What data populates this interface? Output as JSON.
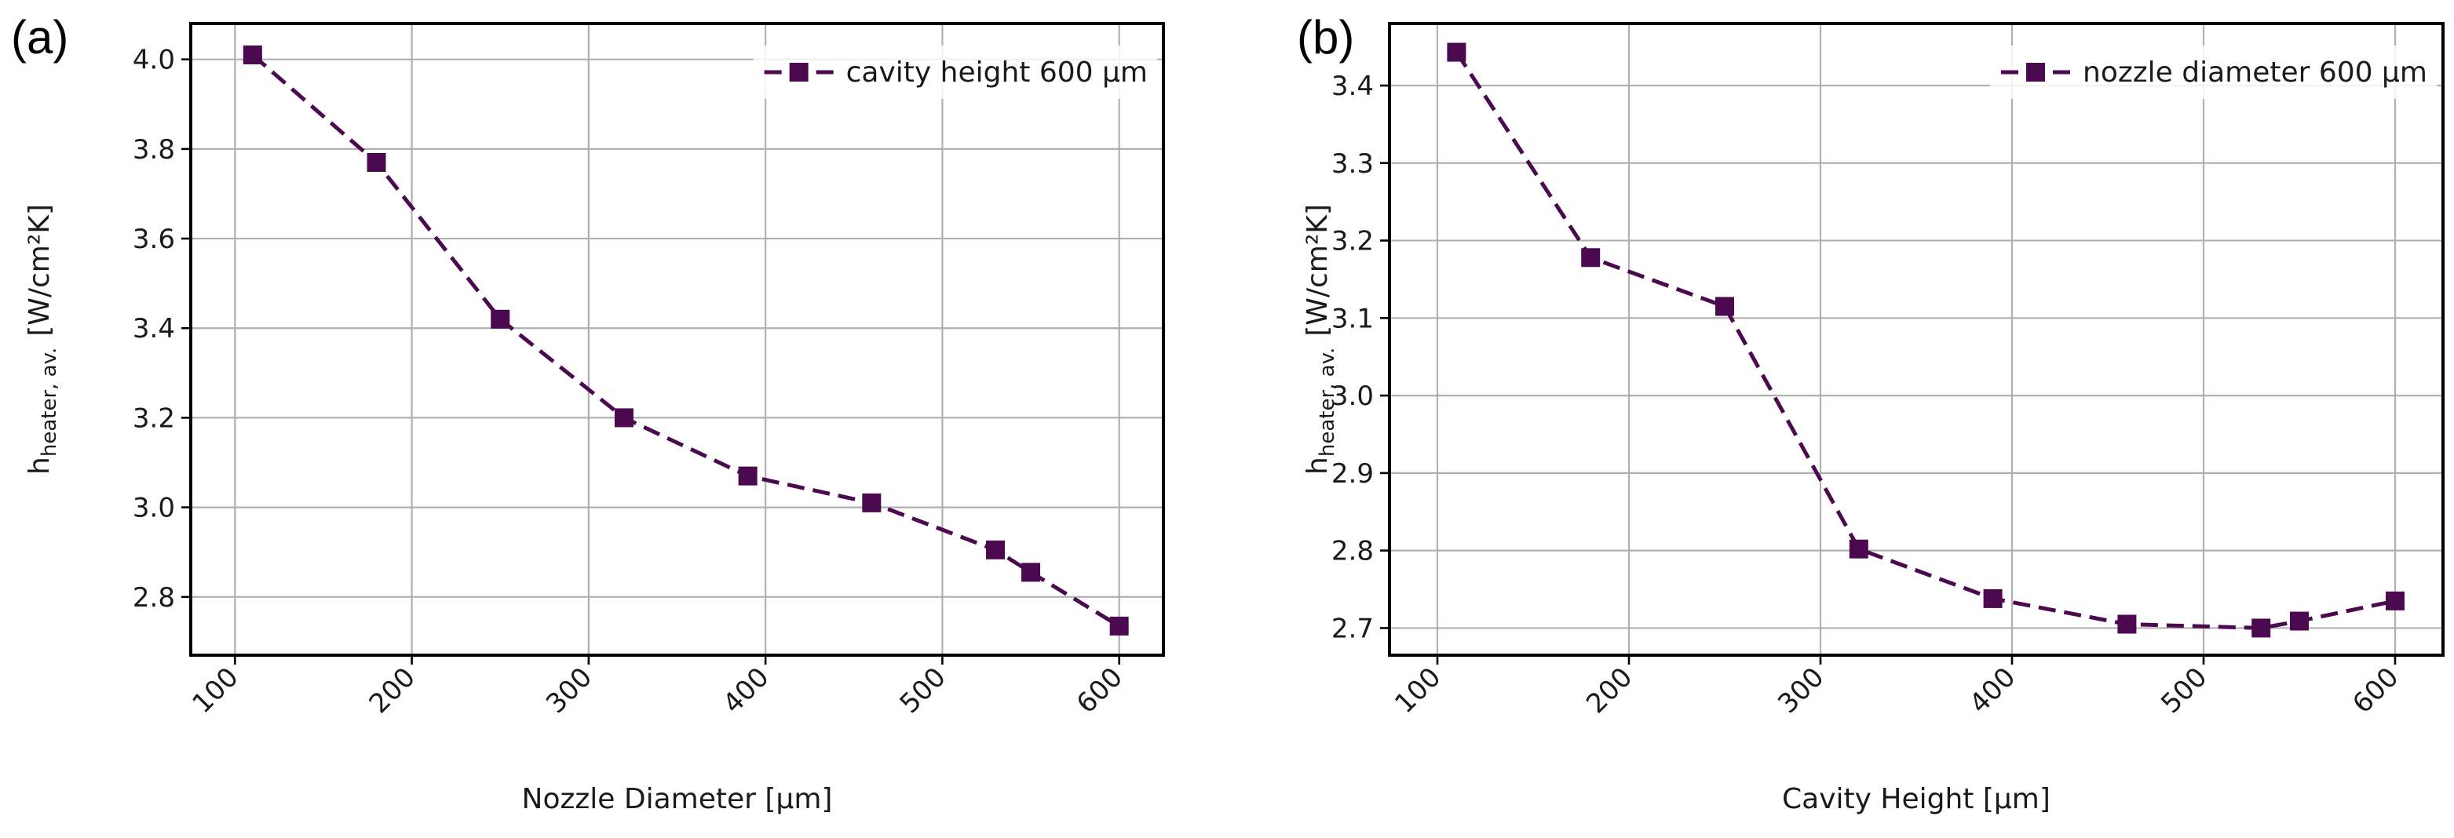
{
  "chart_data": [
    {
      "panel": "(a)",
      "type": "line",
      "xlabel": "Nozzle Diameter [μm]",
      "ylabel": {
        "base": "h",
        "sub": "heater, av.",
        "unit": "[W/cm²K]"
      },
      "xlim": [
        75,
        625
      ],
      "ylim": [
        2.67,
        4.08
      ],
      "xticks": [
        100,
        200,
        300,
        400,
        500,
        600
      ],
      "yticks": [
        2.8,
        3.0,
        3.2,
        3.4,
        3.6,
        3.8,
        4.0
      ],
      "ytick_labels": [
        "2.8",
        "3.0",
        "3.2",
        "3.4",
        "3.6",
        "3.8",
        "4.0"
      ],
      "grid": true,
      "legend_position": "top-right",
      "series": [
        {
          "name": "cavity height 600 μm",
          "x": [
            110,
            180,
            250,
            320,
            390,
            460,
            530,
            550,
            600
          ],
          "y": [
            4.01,
            3.77,
            3.42,
            3.2,
            3.07,
            3.01,
            2.905,
            2.855,
            2.735
          ]
        }
      ]
    },
    {
      "panel": "(b)",
      "type": "line",
      "xlabel": "Cavity Height [μm]",
      "ylabel": {
        "base": "h",
        "sub": "heater, av.",
        "unit": "[W/cm²K]"
      },
      "xlim": [
        75,
        625
      ],
      "ylim": [
        2.665,
        3.48
      ],
      "xticks": [
        100,
        200,
        300,
        400,
        500,
        600
      ],
      "yticks": [
        2.7,
        2.8,
        2.9,
        3.0,
        3.1,
        3.2,
        3.3,
        3.4
      ],
      "ytick_labels": [
        "2.7",
        "2.8",
        "2.9",
        "3.0",
        "3.1",
        "3.2",
        "3.3",
        "3.4"
      ],
      "grid": true,
      "legend_position": "top-right",
      "series": [
        {
          "name": "nozzle diameter 600 μm",
          "x": [
            110,
            180,
            250,
            320,
            390,
            460,
            530,
            550,
            600
          ],
          "y": [
            3.443,
            3.178,
            3.115,
            2.802,
            2.738,
            2.705,
            2.7,
            2.709,
            2.735
          ]
        }
      ]
    }
  ],
  "colors": {
    "series": "#4b0a4f",
    "axes": "#000000",
    "grid": "#b0b0b0"
  },
  "marker": "square"
}
